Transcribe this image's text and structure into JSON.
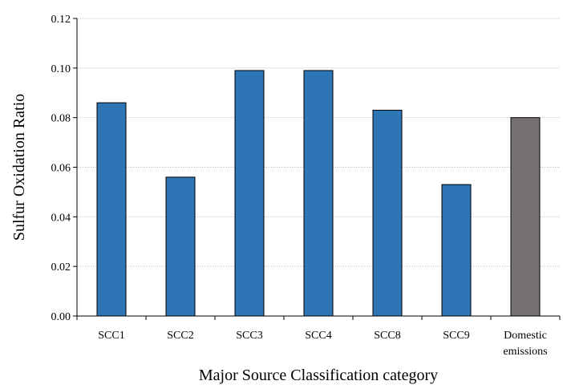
{
  "chart_data": {
    "type": "bar",
    "title": "",
    "xlabel": "Major Source Classification category",
    "ylabel": "Sulfur Oxidation Ratio",
    "categories": [
      [
        "SCC1"
      ],
      [
        "SCC2"
      ],
      [
        "SCC3"
      ],
      [
        "SCC4"
      ],
      [
        "SCC8"
      ],
      [
        "SCC9"
      ],
      [
        "Domestic",
        "emissions"
      ]
    ],
    "values": [
      0.086,
      0.056,
      0.099,
      0.099,
      0.083,
      0.053,
      0.08
    ],
    "bar_colors": [
      "#2e75b6",
      "#2e75b6",
      "#2e75b6",
      "#2e75b6",
      "#2e75b6",
      "#2e75b6",
      "#767171"
    ],
    "ylim": [
      0,
      0.12
    ],
    "yticks": [
      "0.00",
      "0.02",
      "0.04",
      "0.06",
      "0.08",
      "0.10",
      "0.12"
    ],
    "grid": true,
    "legend": "none"
  }
}
